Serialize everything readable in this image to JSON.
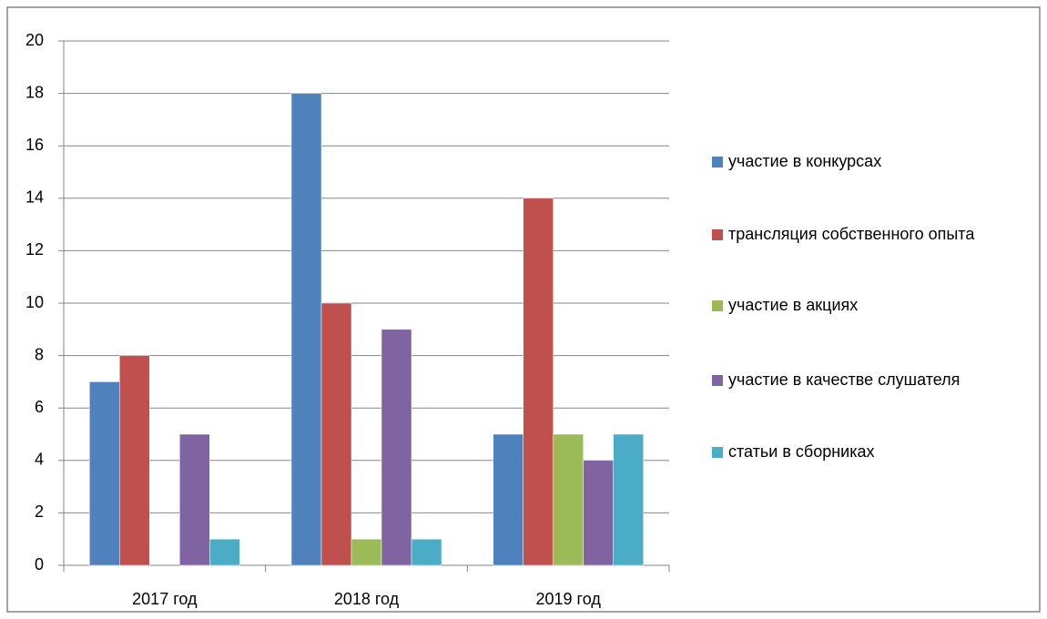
{
  "chart_data": {
    "type": "bar",
    "categories": [
      "2017 год",
      "2018 год",
      "2019 год"
    ],
    "series": [
      {
        "name": "участие в конкурсах",
        "color": "#4f81bd",
        "values": [
          7,
          18,
          5
        ]
      },
      {
        "name": "трансляция собственного опыта",
        "color": "#c0504d",
        "values": [
          8,
          10,
          14
        ]
      },
      {
        "name": "участие в акциях",
        "color": "#9bbb59",
        "values": [
          0,
          1,
          5
        ]
      },
      {
        "name": "участие в качестве слушателя",
        "color": "#8064a2",
        "values": [
          5,
          9,
          4
        ]
      },
      {
        "name": "статьи в сборниках",
        "color": "#4bacc6",
        "values": [
          1,
          1,
          5
        ]
      }
    ],
    "ylim": [
      0,
      20
    ],
    "yticks": [
      0,
      2,
      4,
      6,
      8,
      10,
      12,
      14,
      16,
      18,
      20
    ],
    "grid": true,
    "legend": "right"
  }
}
